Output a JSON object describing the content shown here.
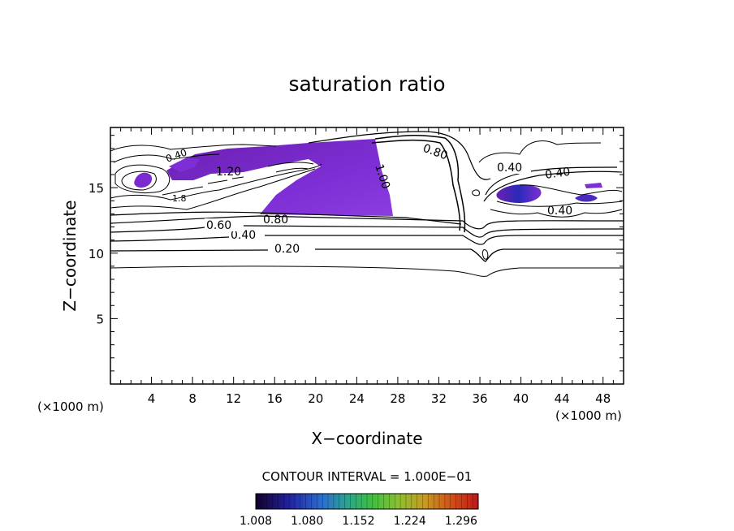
{
  "chart_data": {
    "type": "contour",
    "title": "saturation ratio",
    "xlabel": "X−coordinate",
    "ylabel": "Z−coordinate",
    "x_unit_left": "(×1000 m)",
    "x_unit_right": "(×1000 m)",
    "xlim": [
      0,
      50
    ],
    "ylim": [
      0,
      19.6
    ],
    "xticks": [
      4,
      8,
      12,
      16,
      20,
      24,
      28,
      32,
      36,
      40,
      44,
      48
    ],
    "yticks": [
      5,
      10,
      15
    ],
    "contour_interval_text": "CONTOUR INTERVAL = 1.000E−01",
    "contour_labels": [
      {
        "text": "0.20",
        "x": 17.5,
        "y": 10.5
      },
      {
        "text": "0.40",
        "x": 13.2,
        "y": 11.6
      },
      {
        "text": "0.60",
        "x": 11.0,
        "y": 12.3
      },
      {
        "text": "0.80",
        "x": 16.5,
        "y": 12.7
      },
      {
        "text": "0.80",
        "x": 31.5,
        "y": 18.8
      },
      {
        "text": "0.40",
        "x": 39.3,
        "y": 16.6
      },
      {
        "text": "0.40",
        "x": 43.5,
        "y": 16.1
      },
      {
        "text": "0.40",
        "x": 44.2,
        "y": 13.6
      },
      {
        "text": "1.20",
        "x": 11.8,
        "y": 16.3
      },
      {
        "text": "1.00",
        "x": 26.0,
        "y": 15.9
      },
      {
        "text": "0.40",
        "x": 7.0,
        "y": 17.3
      },
      {
        "text": "1.8",
        "x": 6.6,
        "y": 14.4
      }
    ],
    "colorbar": {
      "min": 1.008,
      "max": 1.32,
      "tick_labels": [
        "1.008",
        "1.080",
        "1.152",
        "1.224",
        "1.296"
      ],
      "colors": [
        "#14002a",
        "#2222a0",
        "#2a6fd0",
        "#2aa888",
        "#3cc040",
        "#8ac030",
        "#c89a20",
        "#d05018",
        "#c01818"
      ]
    },
    "fill_colors": {
      "dark": "#6b1fb0",
      "mid": "#7d2ed4",
      "light": "#8c3de0"
    },
    "grid": false
  }
}
